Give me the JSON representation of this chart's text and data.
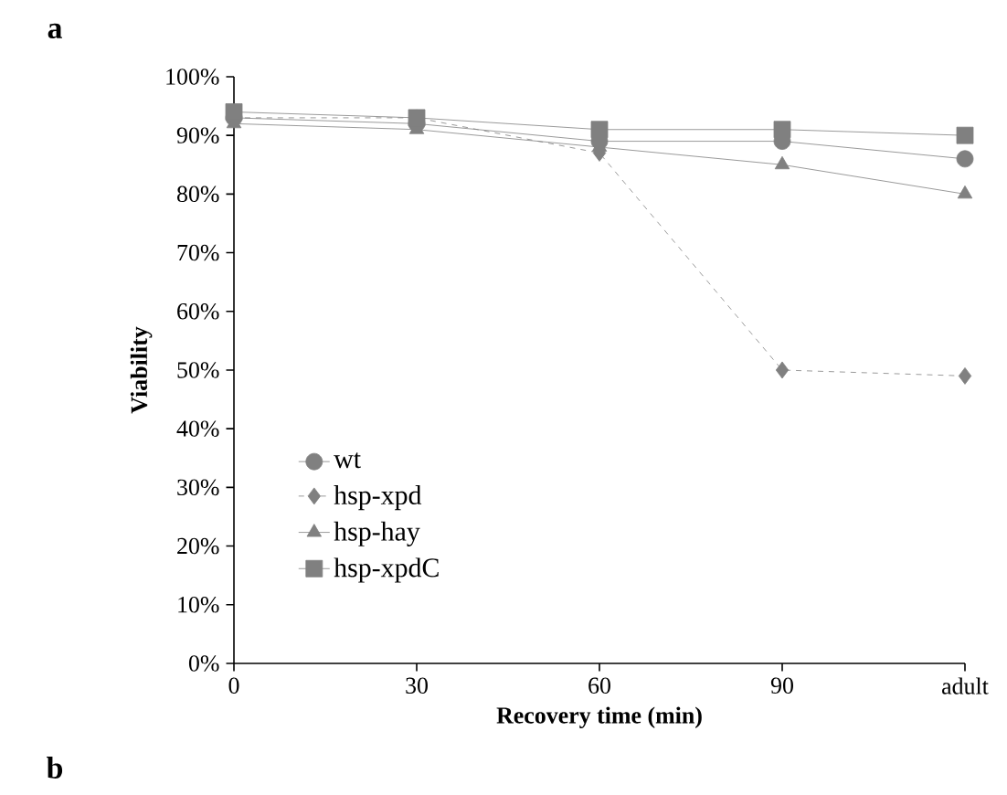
{
  "chart_data": {
    "type": "line",
    "categories": [
      "0",
      "30",
      "60",
      "90",
      "adult"
    ],
    "series": [
      {
        "name": "wt",
        "color": "#808080",
        "marker": "circle",
        "line_style": "solid",
        "values": [
          93,
          92,
          89,
          89,
          86
        ]
      },
      {
        "name": "hsp-xpd",
        "color": "#808080",
        "marker": "diamond",
        "line_style": "dashed",
        "values": [
          93,
          93,
          87,
          50,
          49
        ]
      },
      {
        "name": "hsp-hay",
        "color": "#808080",
        "marker": "triangle",
        "line_style": "solid",
        "values": [
          92,
          91,
          88,
          85,
          80
        ]
      },
      {
        "name": "hsp-xpdC",
        "color": "#808080",
        "marker": "square",
        "line_style": "solid",
        "values": [
          94,
          93,
          91,
          91,
          90
        ]
      }
    ],
    "xlabel": "Recovery time (min)",
    "ylabel": "Viability",
    "ylim": [
      0,
      100
    ],
    "yticks": [
      {
        "value": 0,
        "label": "0%"
      },
      {
        "value": 10,
        "label": "10%"
      },
      {
        "value": 20,
        "label": "20%"
      },
      {
        "value": 30,
        "label": "30%"
      },
      {
        "value": 40,
        "label": "40%"
      },
      {
        "value": 50,
        "label": "50%"
      },
      {
        "value": 60,
        "label": "60%"
      },
      {
        "value": 70,
        "label": "70%"
      },
      {
        "value": 80,
        "label": "80%"
      },
      {
        "value": 90,
        "label": "90%"
      },
      {
        "value": 100,
        "label": "100%"
      }
    ],
    "grid": false,
    "legend": "bottom left",
    "annotations": [
      "a",
      "b"
    ]
  }
}
